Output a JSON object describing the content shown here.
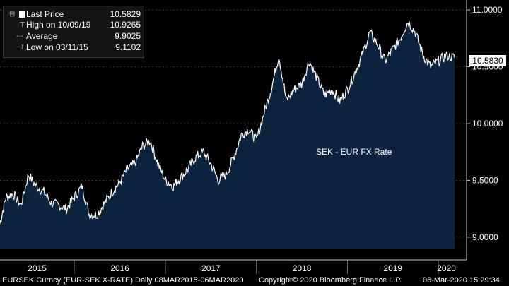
{
  "legend": {
    "last_price_label": "Last Price",
    "last_price_value": "10.5829",
    "high_label": "High on 10/09/19",
    "high_value": "10.9265",
    "average_label": "Average",
    "average_value": "9.9025",
    "low_label": "Low on 03/11/15",
    "low_value": "9.1102"
  },
  "last_value_tag": "10.5830",
  "colors": {
    "background": "#000000",
    "area_fill": "#0c2340",
    "line": "#ffffff",
    "tag_bg": "#ffffff"
  },
  "footer": {
    "ticker": "EURSEK Curncy (EUR-SEK X-RATE)",
    "range": "Daily 08MAR2015-06MAR2020",
    "copyright": "Copyright© 2020 Bloomberg Finance L.P.",
    "timestamp": "06-Mar-2020 15:29:34"
  },
  "chart_data": {
    "type": "area",
    "title": "SEK - EUR FX Rate",
    "xlabel": "",
    "ylabel": "",
    "x_tick_labels": [
      "2015",
      "2016",
      "2017",
      "2018",
      "2019",
      "2020"
    ],
    "y_tick_labels": [
      "9.0000",
      "9.5000",
      "10.0000",
      "10.5000",
      "11.0000"
    ],
    "ylim": [
      8.9,
      11.05
    ],
    "grid": true,
    "legend_position": "top-left",
    "series": [
      {
        "name": "Last Price",
        "x": [
          "2015-03-09",
          "2015-04-01",
          "2015-05-01",
          "2015-06-01",
          "2015-07-01",
          "2015-08-01",
          "2015-09-01",
          "2015-10-01",
          "2015-11-01",
          "2015-12-01",
          "2016-01-01",
          "2016-02-01",
          "2016-03-01",
          "2016-04-01",
          "2016-05-01",
          "2016-06-01",
          "2016-07-01",
          "2016-08-01",
          "2016-09-01",
          "2016-10-01",
          "2016-11-01",
          "2016-12-01",
          "2017-01-01",
          "2017-02-01",
          "2017-03-01",
          "2017-04-01",
          "2017-05-01",
          "2017-06-01",
          "2017-07-01",
          "2017-08-01",
          "2017-09-01",
          "2017-10-01",
          "2017-11-01",
          "2017-12-01",
          "2018-01-01",
          "2018-02-01",
          "2018-03-01",
          "2018-04-01",
          "2018-05-01",
          "2018-06-01",
          "2018-07-01",
          "2018-08-01",
          "2018-09-01",
          "2018-10-01",
          "2018-11-01",
          "2018-12-01",
          "2019-01-01",
          "2019-02-01",
          "2019-03-01",
          "2019-04-01",
          "2019-05-01",
          "2019-06-01",
          "2019-07-01",
          "2019-08-01",
          "2019-09-01",
          "2019-10-01",
          "2019-11-01",
          "2019-12-01",
          "2020-01-01",
          "2020-02-01",
          "2020-03-06"
        ],
        "values": [
          9.12,
          9.35,
          9.38,
          9.28,
          9.55,
          9.45,
          9.4,
          9.3,
          9.28,
          9.25,
          9.35,
          9.45,
          9.2,
          9.2,
          9.3,
          9.4,
          9.48,
          9.6,
          9.65,
          9.8,
          9.85,
          9.65,
          9.5,
          9.45,
          9.52,
          9.6,
          9.7,
          9.75,
          9.65,
          9.5,
          9.55,
          9.7,
          9.9,
          9.95,
          9.85,
          10.1,
          10.3,
          10.6,
          10.2,
          10.3,
          10.35,
          10.55,
          10.4,
          10.25,
          10.3,
          10.2,
          10.3,
          10.45,
          10.6,
          10.8,
          10.7,
          10.55,
          10.65,
          10.75,
          10.9,
          10.8,
          10.6,
          10.5,
          10.55,
          10.6,
          10.58
        ]
      }
    ]
  }
}
